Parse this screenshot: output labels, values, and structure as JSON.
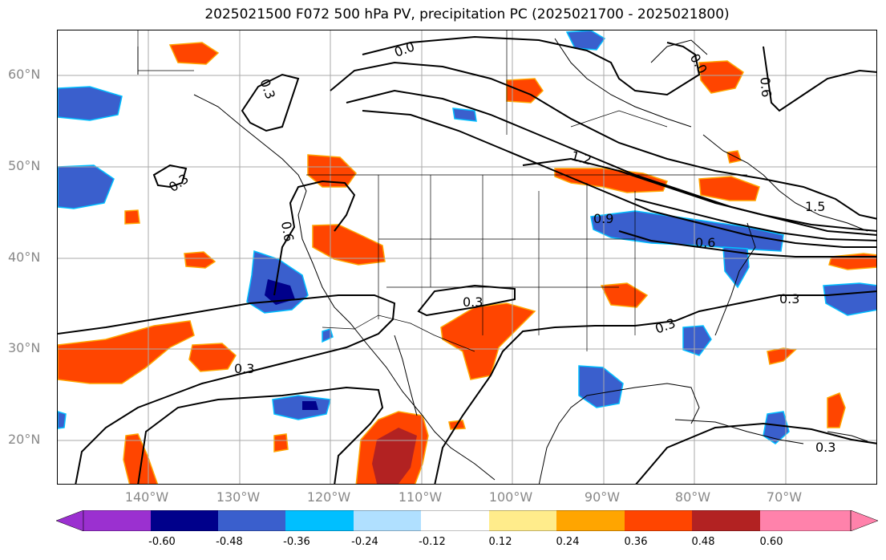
{
  "title": "2025021500 F072 500 hPa PV, precipitation PC (2025021700 - 2025021800)",
  "lat_labels": [
    "60°N",
    "50°N",
    "40°N",
    "30°N",
    "20°N"
  ],
  "lon_labels": [
    "140°W",
    "130°W",
    "120°W",
    "110°W",
    "100°W",
    "90°W",
    "80°W",
    "70°W"
  ],
  "contour_labels": [
    "0.3",
    "0.3",
    "0.6",
    "0.3",
    "0.3",
    "0.3",
    "0.3",
    "1.2",
    "0.9",
    "0.6",
    "1.5",
    "0.6",
    "0.0",
    "0.0",
    "0.3"
  ],
  "colorbar": {
    "ticks": [
      "-0.60",
      "-0.48",
      "-0.36",
      "-0.24",
      "-0.12",
      "0.12",
      "0.24",
      "0.36",
      "0.48",
      "0.60"
    ],
    "colors": [
      "#9b30d0",
      "#00008b",
      "#3a5fcd",
      "#00bfff",
      "#b0e0ff",
      "#ffffff",
      "#ffec8b",
      "#ffa500",
      "#ff4500",
      "#b22222",
      "#ff82ab"
    ]
  }
}
